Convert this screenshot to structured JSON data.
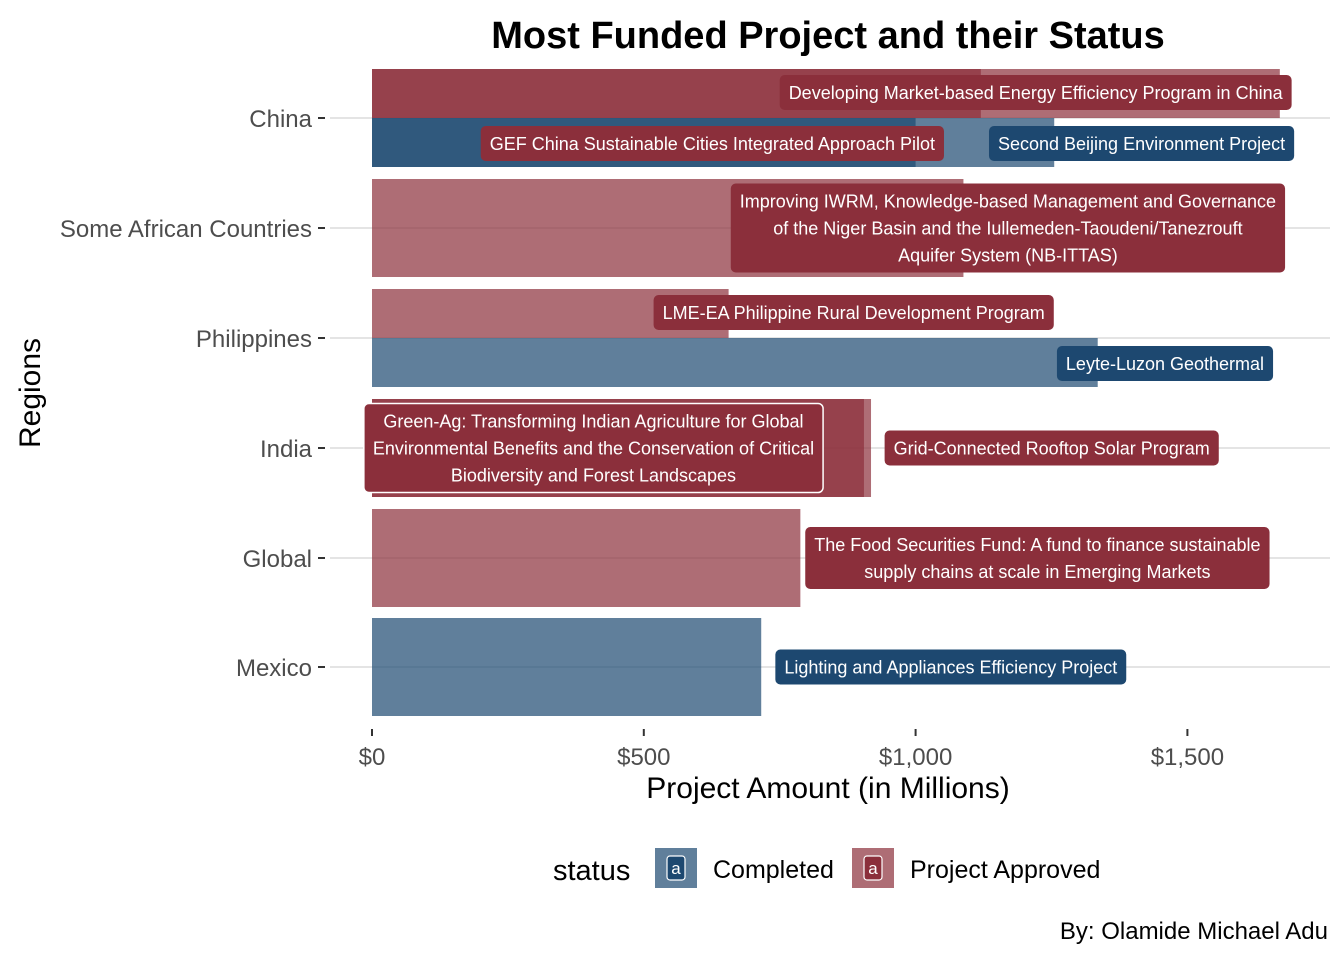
{
  "colors": {
    "completed": "#1d4870",
    "approved": "#8b2f3b",
    "grid": "#dcdcdc",
    "tick": "#333333"
  },
  "chart_data": {
    "type": "bar",
    "orientation": "horizontal",
    "position": "dodge",
    "title": "Most Funded Project and their Status",
    "xlabel": "Project Amount (in Millions)",
    "ylabel": "Regions",
    "xlim": [
      0,
      1760
    ],
    "x_ticks": [
      0,
      500,
      1000,
      1500
    ],
    "x_tick_labels": [
      "$0",
      "$500",
      "$1,000",
      "$1,500"
    ],
    "categories": [
      "China",
      "Some African Countries",
      "Philippines",
      "India",
      "Global",
      "Mexico"
    ],
    "legend": {
      "title": "status",
      "position": "bottom",
      "entries": [
        {
          "key": "completed",
          "label": "Completed"
        },
        {
          "key": "approved",
          "label": "Project Approved"
        }
      ],
      "key_letter": "a"
    },
    "bars": [
      {
        "region": "China",
        "status": "approved",
        "amount": 1120,
        "slot": 0,
        "slots": 2
      },
      {
        "region": "China",
        "status": "approved",
        "amount": 1670,
        "slot": 0,
        "slots": 2
      },
      {
        "region": "China",
        "status": "completed",
        "amount": 1000,
        "slot": 1,
        "slots": 2
      },
      {
        "region": "China",
        "status": "completed",
        "amount": 1255,
        "slot": 1,
        "slots": 2
      },
      {
        "region": "Some African Countries",
        "status": "approved",
        "amount": 1088,
        "slot": 0,
        "slots": 1
      },
      {
        "region": "Philippines",
        "status": "approved",
        "amount": 656,
        "slot": 0,
        "slots": 2
      },
      {
        "region": "Philippines",
        "status": "completed",
        "amount": 1335,
        "slot": 1,
        "slots": 2
      },
      {
        "region": "India",
        "status": "approved",
        "amount": 905,
        "slot": 0,
        "slots": 1
      },
      {
        "region": "India",
        "status": "approved",
        "amount": 918,
        "slot": 0,
        "slots": 1
      },
      {
        "region": "Global",
        "status": "approved",
        "amount": 788,
        "slot": 0,
        "slots": 1
      },
      {
        "region": "Mexico",
        "status": "completed",
        "amount": 716,
        "slot": 0,
        "slots": 1
      }
    ],
    "labels": [
      {
        "region": "China",
        "status": "approved",
        "lines": [
          "Developing Market-based Energy Efficiency Program in China"
        ],
        "x_left": 750,
        "y_offset": -0.26
      },
      {
        "region": "China",
        "status": "approved",
        "lines": [
          "GEF China Sustainable Cities Integrated Approach Pilot"
        ],
        "x_left": 200,
        "y_offset": 0.26
      },
      {
        "region": "China",
        "status": "completed",
        "lines": [
          "Second Beijing Environment Project"
        ],
        "x_left": 1135,
        "y_offset": 0.26
      },
      {
        "region": "Some African Countries",
        "status": "approved",
        "lines": [
          "Improving IWRM, Knowledge-based Management and Governance",
          "of the Niger Basin and the Iullemeden-Taoudeni/Tanezrouft",
          "Aquifer System (NB-ITTAS)"
        ],
        "x_left": 660,
        "y_offset": 0
      },
      {
        "region": "Philippines",
        "status": "approved",
        "lines": [
          "LME-EA Philippine Rural Development Program"
        ],
        "x_left": 518,
        "y_offset": -0.26
      },
      {
        "region": "Philippines",
        "status": "completed",
        "lines": [
          "Leyte-Luzon Geothermal"
        ],
        "x_left": 1260,
        "y_offset": 0.26
      },
      {
        "region": "India",
        "status": "approved",
        "lines": [
          "Green-Ag: Transforming Indian Agriculture for Global",
          "Environmental Benefits and the Conservation of Critical",
          "Biodiversity and Forest Landscapes"
        ],
        "x_left": -15,
        "y_offset": 0,
        "outlined": true
      },
      {
        "region": "India",
        "status": "approved",
        "lines": [
          "Grid-Connected Rooftop Solar Program"
        ],
        "x_left": 943,
        "y_offset": 0
      },
      {
        "region": "Global",
        "status": "approved",
        "lines": [
          "The Food Securities Fund: A fund to finance sustainable",
          "supply chains at scale in Emerging Markets"
        ],
        "x_left": 797,
        "y_offset": 0
      },
      {
        "region": "Mexico",
        "status": "completed",
        "lines": [
          "Lighting and Appliances Efficiency Project"
        ],
        "x_left": 742,
        "y_offset": 0
      }
    ]
  },
  "caption": "By: Olamide Michael Adu"
}
